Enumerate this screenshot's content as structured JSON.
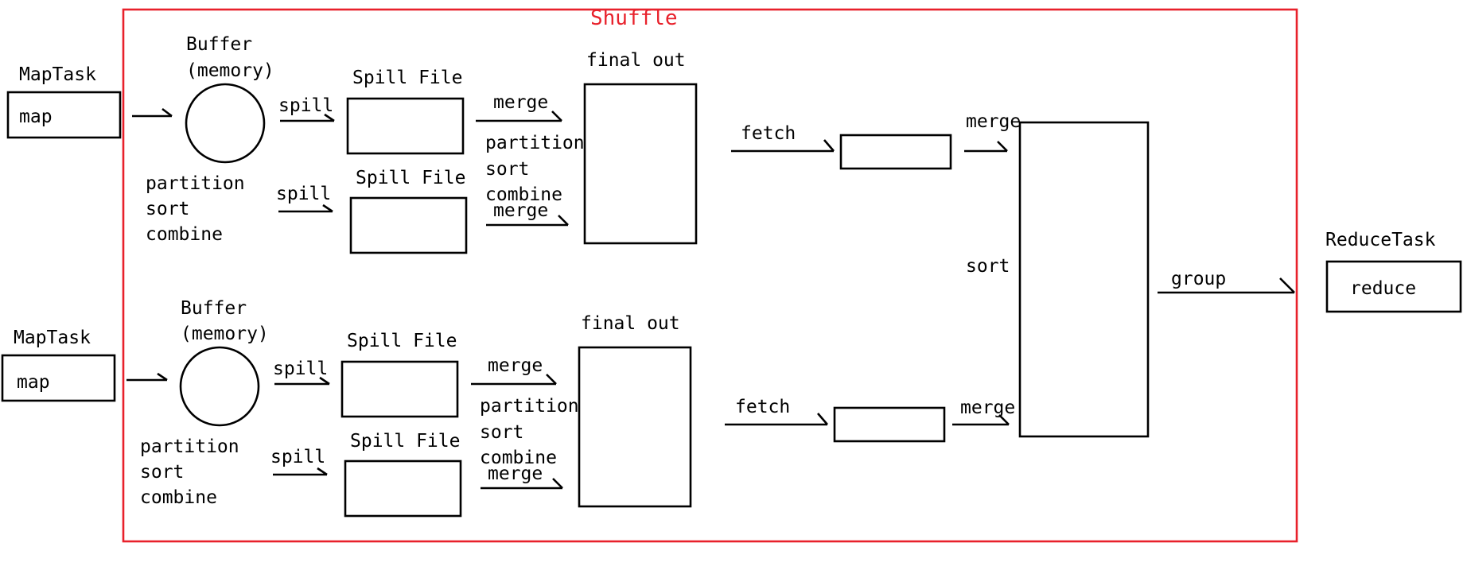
{
  "colors": {
    "shuffle": "#e8212b",
    "stroke": "#000000"
  },
  "shuffle": {
    "label": "Shuffle"
  },
  "maptasks": [
    {
      "label": "MapTask",
      "node": "map",
      "buffer": {
        "line1": "Buffer",
        "line2": "(memory)"
      },
      "ops": {
        "l1": "partition",
        "l2": "sort",
        "l3": "combine"
      },
      "spills": [
        {
          "arrow": "spill",
          "file": "Spill File",
          "merge": "merge"
        },
        {
          "arrow": "spill",
          "file": "Spill File",
          "merge": "merge"
        }
      ],
      "merge_ops": {
        "l1": "partition",
        "l2": "sort",
        "l3": "combine"
      },
      "final": "final out",
      "fetch": "fetch",
      "merge2": "merge"
    },
    {
      "label": "MapTask",
      "node": "map",
      "buffer": {
        "line1": "Buffer",
        "line2": "(memory)"
      },
      "ops": {
        "l1": "partition",
        "l2": "sort",
        "l3": "combine"
      },
      "spills": [
        {
          "arrow": "spill",
          "file": "Spill File",
          "merge": "merge"
        },
        {
          "arrow": "spill",
          "file": "Spill File",
          "merge": "merge"
        }
      ],
      "merge_ops": {
        "l1": "partition",
        "l2": "sort",
        "l3": "combine"
      },
      "final": "final out",
      "fetch": "fetch",
      "merge2": "merge"
    }
  ],
  "reduce_side": {
    "sort": "sort",
    "group": "group"
  },
  "reducetask": {
    "label": "ReduceTask",
    "node": "reduce"
  }
}
